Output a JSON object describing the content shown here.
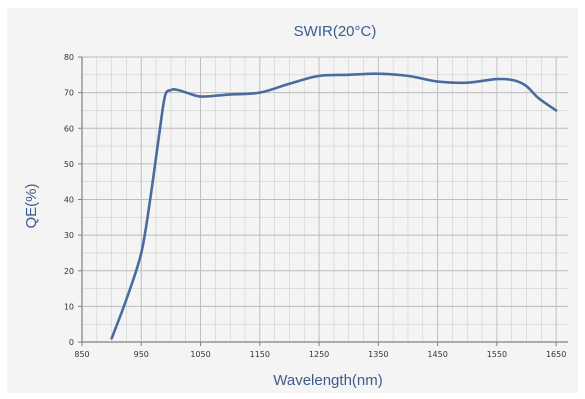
{
  "colors": {
    "line": "#4a6b9e",
    "grid": "#d0d0d0",
    "axis": "#808080",
    "label": "#3d5c8c",
    "background": "#f4f4f4"
  },
  "chart_data": {
    "type": "line",
    "title": "SWIR(20°C)",
    "xlabel": "Wavelength(nm)",
    "ylabel": "QE(%)",
    "xlim": [
      850,
      1670
    ],
    "ylim": [
      0,
      80
    ],
    "xticks": [
      850,
      950,
      1050,
      1150,
      1250,
      1350,
      1450,
      1550,
      1650
    ],
    "yticks": [
      0,
      10,
      20,
      30,
      40,
      50,
      60,
      70,
      80
    ],
    "x_minor_step": 25,
    "y_minor_step": 5,
    "grid": true,
    "legend": "none",
    "series": [
      {
        "x": [
          900,
          925,
          950,
          965,
          980,
          990,
          1000,
          1010,
          1030,
          1050,
          1080,
          1100,
          1150,
          1200,
          1250,
          1300,
          1350,
          1400,
          1450,
          1500,
          1550,
          1580,
          1600,
          1620,
          1650
        ],
        "y": [
          1,
          12,
          25,
          40,
          58,
          69,
          70.7,
          70.8,
          69.8,
          68.9,
          69.2,
          69.5,
          70,
          72.5,
          74.7,
          75,
          75.3,
          74.7,
          73.1,
          72.8,
          73.8,
          73.4,
          71.8,
          68.5,
          65
        ]
      }
    ]
  }
}
